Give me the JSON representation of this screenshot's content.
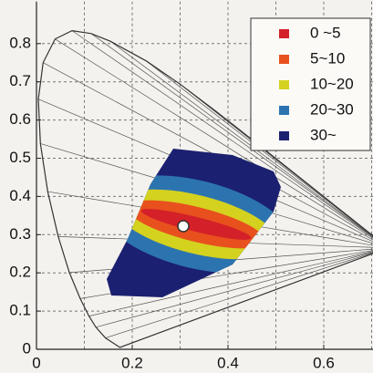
{
  "chart_data": {
    "type": "chromaticity",
    "xlim": [
      0,
      0.7
    ],
    "ylim": [
      0,
      0.91
    ],
    "xticks": [
      0,
      0.2,
      0.4,
      0.6
    ],
    "x_minor_ticks": [
      0.1,
      0.3,
      0.5,
      0.7
    ],
    "yticks": [
      0,
      0.1,
      0.2,
      0.3,
      0.4,
      0.5,
      0.6,
      0.7,
      0.8
    ],
    "grid": true,
    "legend": "upper right",
    "series": [
      {
        "name": "0 ~5",
        "color": "#d42028"
      },
      {
        "name": "5~10",
        "color": "#e8501e"
      },
      {
        "name": "10~20",
        "color": "#d4d21e"
      },
      {
        "name": "20~30",
        "color": "#2c74b0"
      },
      {
        "name": "30~",
        "color": "#1c2070"
      }
    ]
  }
}
